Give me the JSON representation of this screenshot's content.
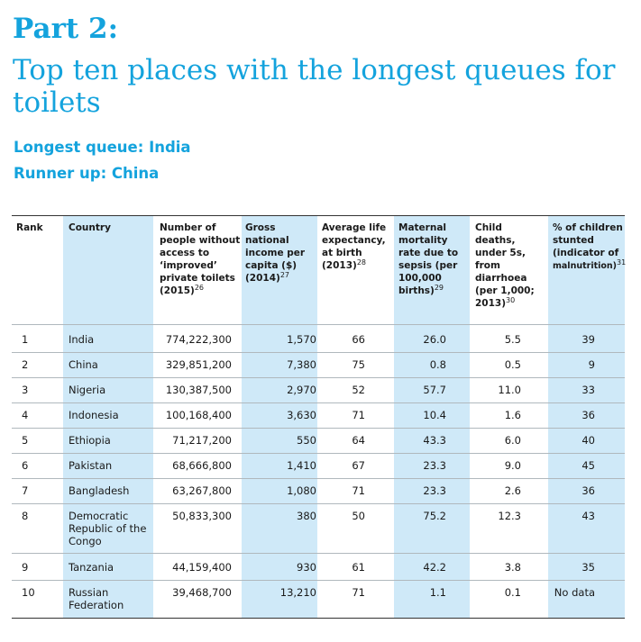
{
  "heading": {
    "part": "Part 2:",
    "title": "Top ten places with the longest queues for toilets",
    "longest": "Longest queue: India",
    "runner_up": "Runner up: China"
  },
  "table": {
    "headers": {
      "rank": "Rank",
      "country": "Country",
      "people_text": "Number of people without access to ‘improved’ private toilets (2015)",
      "people_ref": "26",
      "gni_text": "Gross national income per capita ($) (2014)",
      "gni_ref": "27",
      "life_text": "Average life expectancy, at birth (2013)",
      "life_ref": "28",
      "maternal_text": "Maternal mortality rate due to sepsis (per 100,000 births)",
      "maternal_ref": "29",
      "child_text": "Child deaths, under 5s, from diarrhoea (per 1,000; 2013)",
      "child_ref": "30",
      "stunted_text": "% of children stunted (indicator of",
      "stunted_small": "malnutrition)",
      "stunted_ref": "31"
    },
    "rows": [
      {
        "rank": "1",
        "country": "India",
        "people": "774,222,300",
        "gni": "1,570",
        "life": "66",
        "maternal": "26.0",
        "child": "5.5",
        "stunted": "39"
      },
      {
        "rank": "2",
        "country": "China",
        "people": "329,851,200",
        "gni": "7,380",
        "life": "75",
        "maternal": "0.8",
        "child": "0.5",
        "stunted": "9"
      },
      {
        "rank": "3",
        "country": "Nigeria",
        "people": "130,387,500",
        "gni": "2,970",
        "life": "52",
        "maternal": "57.7",
        "child": "11.0",
        "stunted": "33"
      },
      {
        "rank": "4",
        "country": "Indonesia",
        "people": "100,168,400",
        "gni": "3,630",
        "life": "71",
        "maternal": "10.4",
        "child": "1.6",
        "stunted": "36"
      },
      {
        "rank": "5",
        "country": "Ethiopia",
        "people": "71,217,200",
        "gni": "550",
        "life": "64",
        "maternal": "43.3",
        "child": "6.0",
        "stunted": "40"
      },
      {
        "rank": "6",
        "country": "Pakistan",
        "people": "68,666,800",
        "gni": "1,410",
        "life": "67",
        "maternal": "23.3",
        "child": "9.0",
        "stunted": "45"
      },
      {
        "rank": "7",
        "country": "Bangladesh",
        "people": "63,267,800",
        "gni": "1,080",
        "life": "71",
        "maternal": "23.3",
        "child": "2.6",
        "stunted": "36"
      },
      {
        "rank": "8",
        "country": "Democratic Republic of the Congo",
        "people": "50,833,300",
        "gni": "380",
        "life": "50",
        "maternal": "75.2",
        "child": "12.3",
        "stunted": "43"
      },
      {
        "rank": "9",
        "country": "Tanzania",
        "people": "44,159,400",
        "gni": "930",
        "life": "61",
        "maternal": "42.2",
        "child": "3.8",
        "stunted": "35"
      },
      {
        "rank": "10",
        "country": "Russian Federation",
        "people": "39,468,700",
        "gni": "13,210",
        "life": "71",
        "maternal": "1.1",
        "child": "0.1",
        "stunted": "No data"
      }
    ]
  }
}
